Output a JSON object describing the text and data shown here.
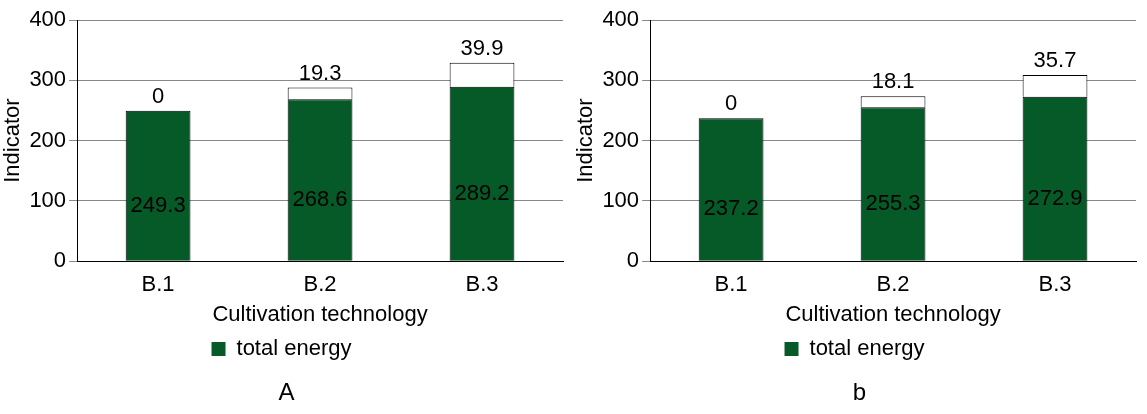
{
  "chart_data": [
    {
      "type": "bar",
      "stacked": true,
      "categories": [
        "B.1",
        "B.2",
        "B.3"
      ],
      "xlabel": "Cultivation technology",
      "ylabel": "Indicator",
      "ylim": [
        0,
        400
      ],
      "yticks": [
        0,
        100,
        200,
        300,
        400
      ],
      "grid": "y",
      "legend": "bottom",
      "data_labels": true,
      "annotations": [
        "A"
      ],
      "series": [
        {
          "name": "total energy",
          "color": "#055a28",
          "values": [
            249.3,
            268.6,
            289.2
          ]
        },
        {
          "color": "#ffffff",
          "values": [
            0,
            19.3,
            39.9
          ]
        }
      ]
    },
    {
      "type": "bar",
      "stacked": true,
      "categories": [
        "B.1",
        "B.2",
        "B.3"
      ],
      "xlabel": "Cultivation technology",
      "ylabel": "Indicator",
      "ylim": [
        0,
        400
      ],
      "yticks": [
        0,
        100,
        200,
        300,
        400
      ],
      "grid": "y",
      "legend": "bottom",
      "data_labels": true,
      "annotations": [
        "b"
      ],
      "series": [
        {
          "name": "total energy",
          "color": "#055a28",
          "values": [
            237.2,
            255.3,
            272.9
          ]
        },
        {
          "color": "#ffffff",
          "values": [
            0,
            18.1,
            35.7
          ]
        }
      ]
    }
  ]
}
